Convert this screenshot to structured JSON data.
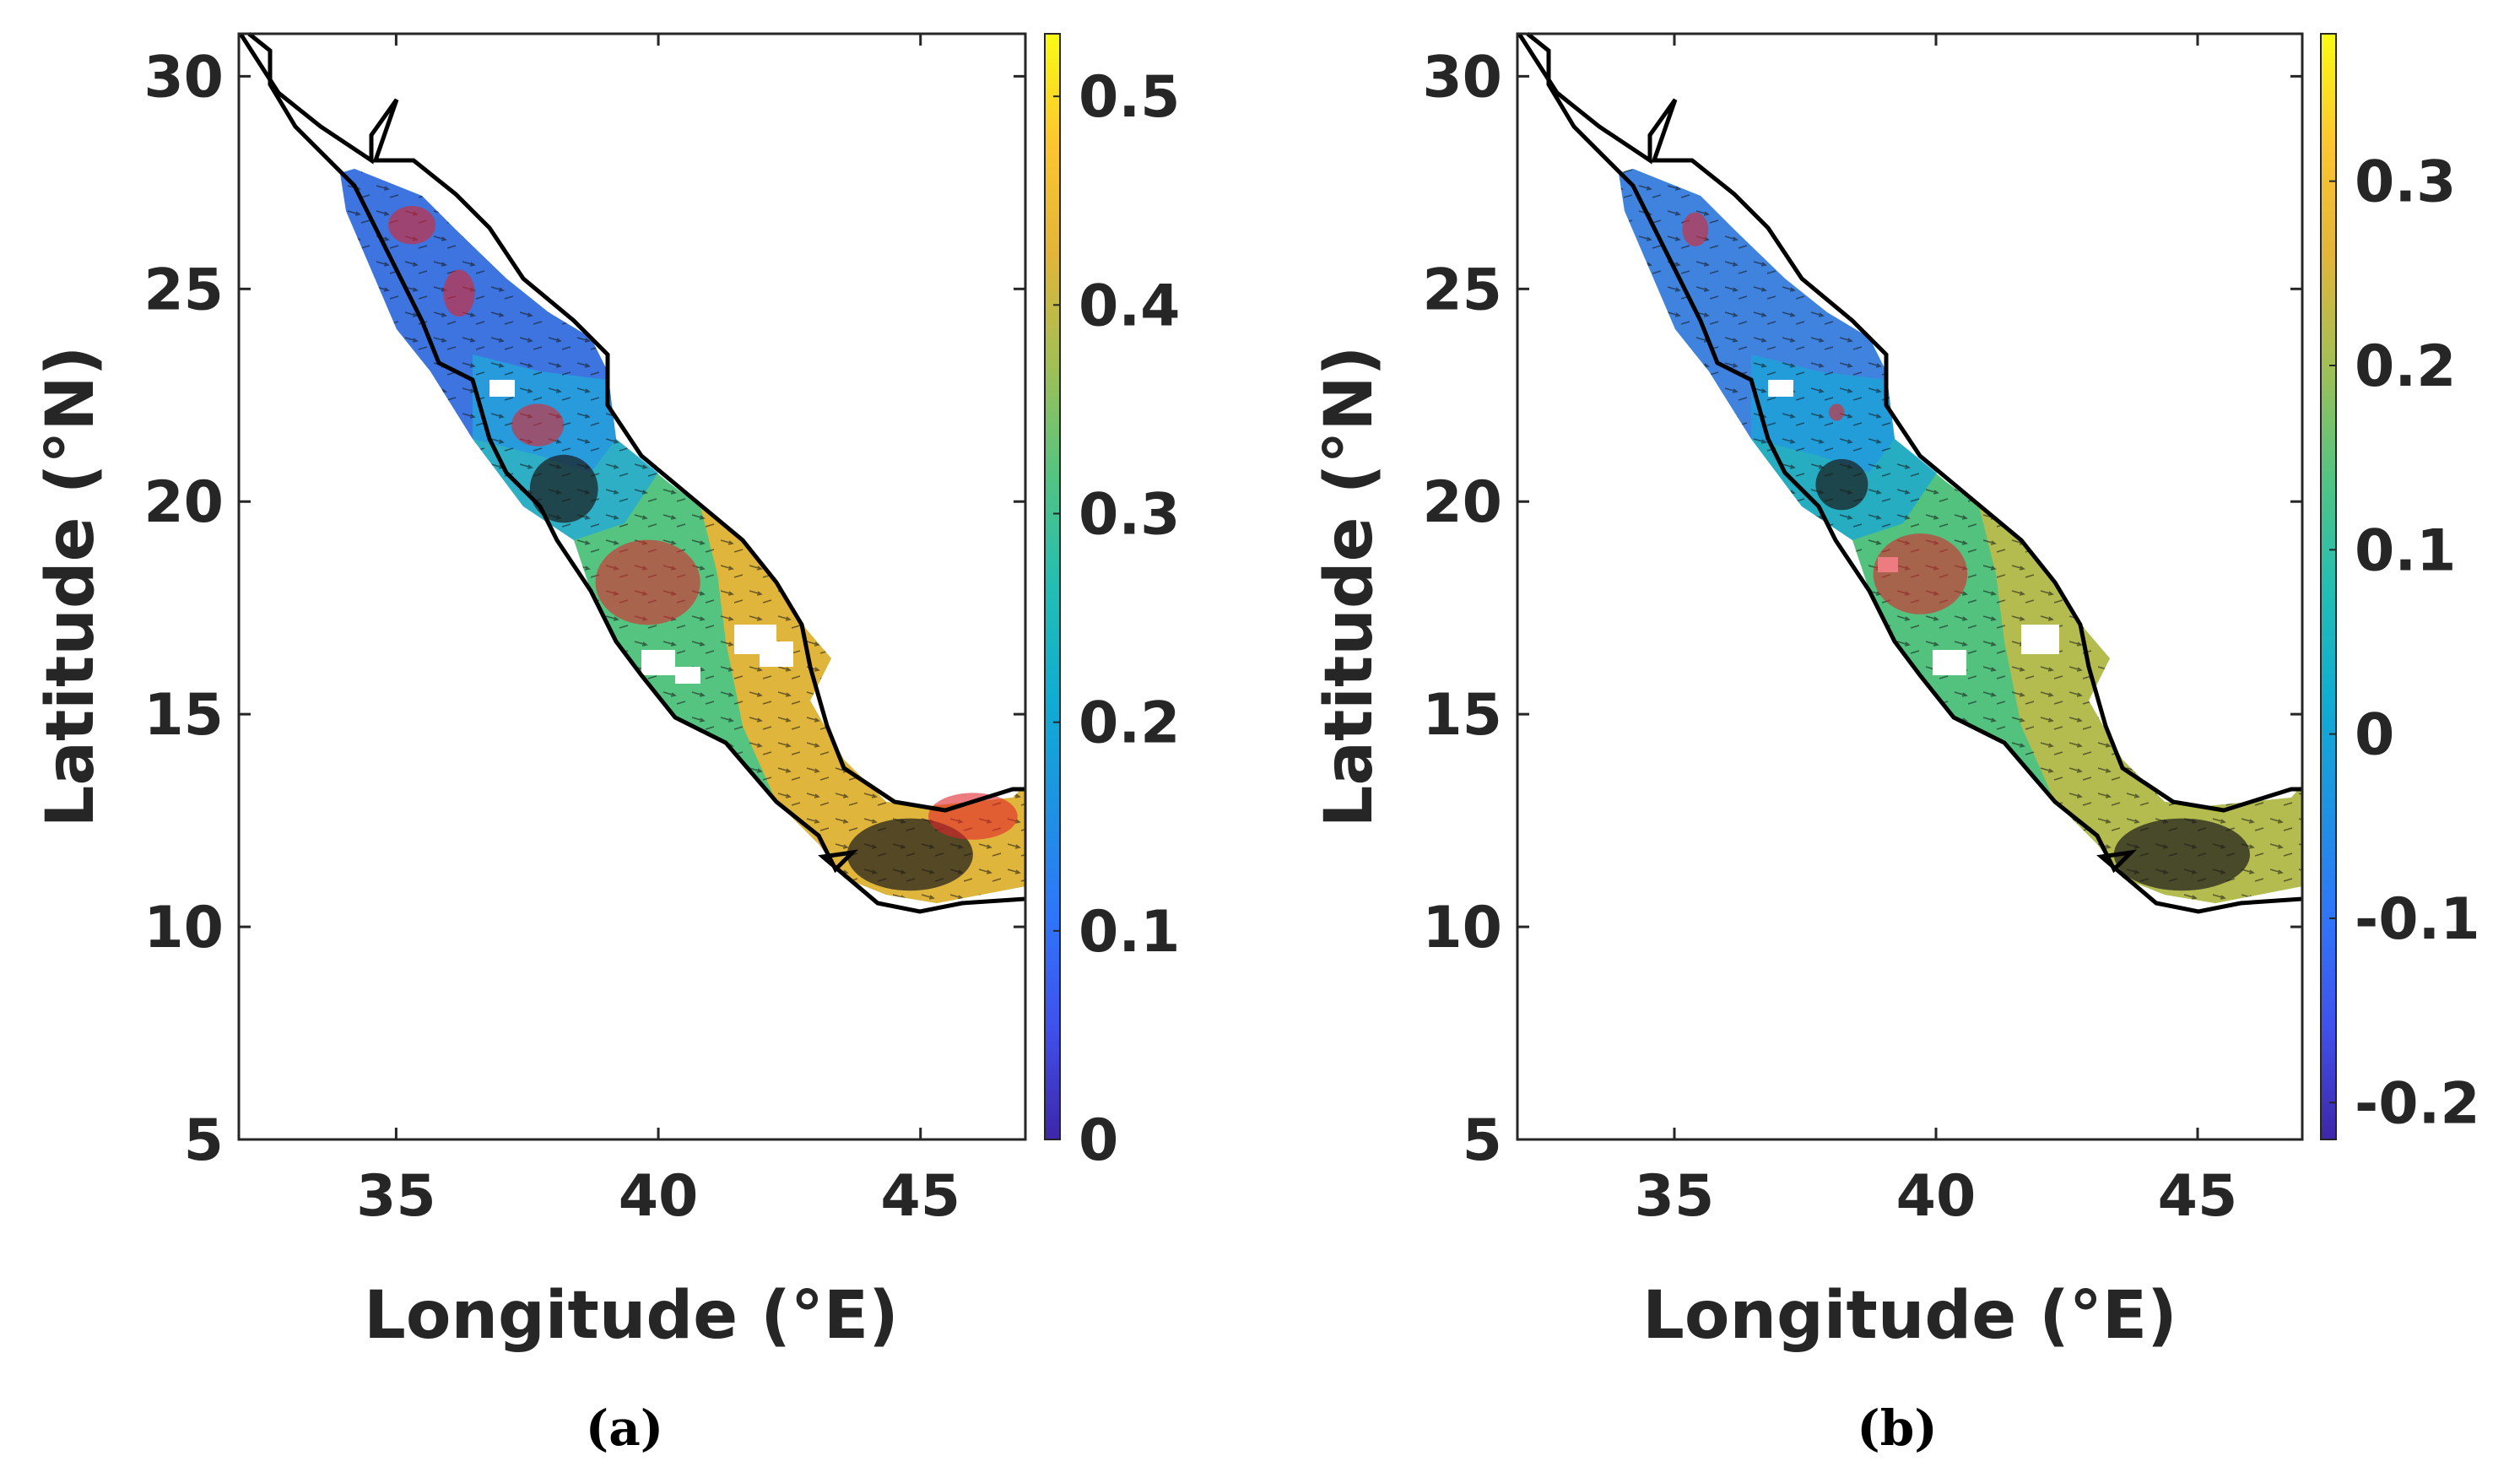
{
  "chart_data": [
    {
      "type": "heatmap",
      "panel_label": "(a)",
      "xlabel": "Longitude (°E)",
      "ylabel": "Latitude (°N)",
      "xlim": [
        32,
        47
      ],
      "ylim": [
        5,
        31
      ],
      "x_ticks": [
        35,
        40,
        45
      ],
      "x_tick_labels": [
        "35",
        "40",
        "45"
      ],
      "y_ticks": [
        5,
        10,
        15,
        20,
        25,
        30
      ],
      "y_tick_labels": [
        "5",
        "10",
        "15",
        "20",
        "25",
        "30"
      ],
      "colorbar": {
        "range": [
          0,
          0.53
        ],
        "ticks": [
          0,
          0.1,
          0.2,
          0.3,
          0.4,
          0.5
        ],
        "tick_labels": [
          "0",
          "0.1",
          "0.2",
          "0.3",
          "0.4",
          "0.5"
        ]
      },
      "field_samples": [
        {
          "lon": 34.8,
          "lat": 26.5,
          "value": 0.1
        },
        {
          "lon": 36.0,
          "lat": 24.5,
          "value": 0.15
        },
        {
          "lon": 37.3,
          "lat": 22.5,
          "value": 0.22
        },
        {
          "lon": 38.3,
          "lat": 20.5,
          "value": 0.25
        },
        {
          "lon": 39.8,
          "lat": 18.5,
          "value": 0.33
        },
        {
          "lon": 41.2,
          "lat": 16.5,
          "value": 0.4
        },
        {
          "lon": 42.5,
          "lat": 14.5,
          "value": 0.45
        },
        {
          "lon": 44.5,
          "lat": 12.0,
          "value": 0.48
        },
        {
          "lon": 46.0,
          "lat": 12.5,
          "value": 0.5
        }
      ],
      "eddies": [
        {
          "type": "anticyclonic",
          "lon": 35.3,
          "lat": 26.5,
          "rx_deg": 0.45,
          "ry_deg": 0.45
        },
        {
          "type": "anticyclonic",
          "lon": 36.2,
          "lat": 24.9,
          "rx_deg": 0.3,
          "ry_deg": 0.55
        },
        {
          "type": "anticyclonic",
          "lon": 37.7,
          "lat": 21.8,
          "rx_deg": 0.5,
          "ry_deg": 0.5
        },
        {
          "type": "cyclonic",
          "lon": 38.2,
          "lat": 20.3,
          "rx_deg": 0.65,
          "ry_deg": 0.8
        },
        {
          "type": "anticyclonic",
          "lon": 39.8,
          "lat": 18.1,
          "rx_deg": 1.0,
          "ry_deg": 1.0
        },
        {
          "type": "cyclonic",
          "lon": 44.8,
          "lat": 11.7,
          "rx_deg": 1.2,
          "ry_deg": 0.85
        },
        {
          "type": "anticyclonic",
          "lon": 46.0,
          "lat": 12.6,
          "rx_deg": 0.85,
          "ry_deg": 0.55
        }
      ]
    },
    {
      "type": "heatmap",
      "panel_label": "(b)",
      "xlabel": "Longitude (°E)",
      "ylabel": "Latitude (°N)",
      "xlim": [
        32,
        47
      ],
      "ylim": [
        5,
        31
      ],
      "x_ticks": [
        35,
        40,
        45
      ],
      "x_tick_labels": [
        "35",
        "40",
        "45"
      ],
      "y_ticks": [
        5,
        10,
        15,
        20,
        25,
        30
      ],
      "y_tick_labels": [
        "5",
        "10",
        "15",
        "20",
        "25",
        "30"
      ],
      "colorbar": {
        "range": [
          -0.22,
          0.38
        ],
        "ticks": [
          -0.2,
          -0.1,
          0,
          0.1,
          0.2,
          0.3
        ],
        "tick_labels": [
          "-0.2",
          "-0.1",
          "0",
          "0.1",
          "0.2",
          "0.3"
        ]
      },
      "field_samples": [
        {
          "lon": 34.8,
          "lat": 26.5,
          "value": -0.12
        },
        {
          "lon": 36.0,
          "lat": 24.5,
          "value": -0.06
        },
        {
          "lon": 37.3,
          "lat": 22.5,
          "value": 0.0
        },
        {
          "lon": 38.3,
          "lat": 20.5,
          "value": 0.03
        },
        {
          "lon": 39.8,
          "lat": 18.5,
          "value": 0.08
        },
        {
          "lon": 41.2,
          "lat": 16.5,
          "value": 0.14
        },
        {
          "lon": 42.5,
          "lat": 14.5,
          "value": 0.2
        },
        {
          "lon": 44.5,
          "lat": 12.0,
          "value": 0.25
        },
        {
          "lon": 46.0,
          "lat": 12.5,
          "value": 0.3
        }
      ],
      "eddies": [
        {
          "type": "anticyclonic",
          "lon": 35.4,
          "lat": 26.4,
          "rx_deg": 0.25,
          "ry_deg": 0.4
        },
        {
          "type": "anticyclonic",
          "lon": 38.1,
          "lat": 22.1,
          "rx_deg": 0.15,
          "ry_deg": 0.2
        },
        {
          "type": "cyclonic",
          "lon": 38.2,
          "lat": 20.4,
          "rx_deg": 0.5,
          "ry_deg": 0.6
        },
        {
          "type": "anticyclonic",
          "lon": 39.7,
          "lat": 18.3,
          "rx_deg": 0.9,
          "ry_deg": 0.95
        },
        {
          "type": "cyclonic",
          "lon": 44.7,
          "lat": 11.7,
          "rx_deg": 1.3,
          "ry_deg": 0.85
        }
      ]
    }
  ]
}
